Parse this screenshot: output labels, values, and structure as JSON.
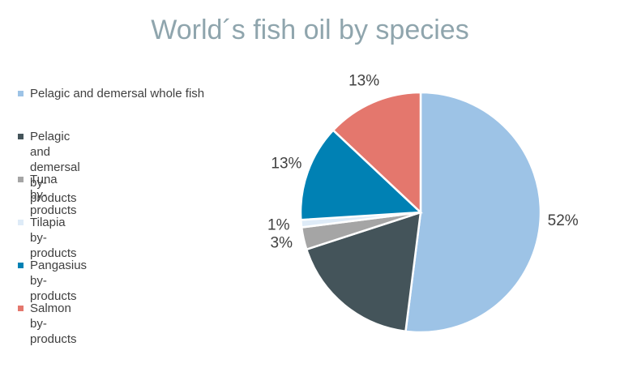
{
  "chart_data": {
    "type": "pie",
    "title": "World´s fish oil by species",
    "categories": [
      "Pelagic and demersal whole fish",
      "Pelagic and demersal by-products",
      "Tuna by-products",
      "Tilapia by-products",
      "Pangasius by-products",
      "Salmon by-products"
    ],
    "values": [
      52,
      18,
      3,
      1,
      13,
      13
    ],
    "value_labels": [
      "52%",
      null,
      "3%",
      "1%",
      "13%",
      "13%"
    ],
    "colors": [
      "#9dc3e6",
      "#44545a",
      "#a5a5a5",
      "#deebf7",
      "#0081b4",
      "#e4776d"
    ],
    "legend": "left"
  }
}
